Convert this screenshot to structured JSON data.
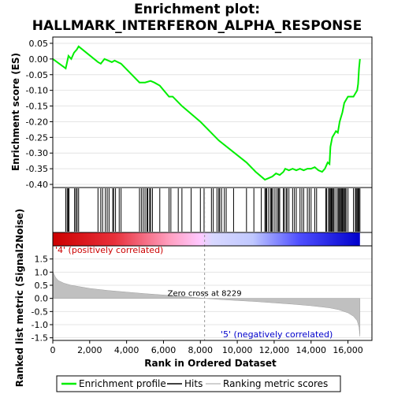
{
  "chart_data": {
    "type": "line",
    "title_line1": "Enrichment plot:",
    "title_line2": "HALLMARK_INTERFERON_ALPHA_RESPONSE",
    "es_panel": {
      "ylabel": "Enrichment score (ES)",
      "ylim": [
        -0.41,
        0.07
      ],
      "yticks": [
        "0.05",
        "0.00",
        "-0.05",
        "-0.10",
        "-0.15",
        "-0.20",
        "-0.25",
        "-0.30",
        "-0.35",
        "-0.40"
      ],
      "ytick_values": [
        0.05,
        0.0,
        -0.05,
        -0.1,
        -0.15,
        -0.2,
        -0.25,
        -0.3,
        -0.35,
        -0.4
      ],
      "series_name": "Enrichment profile",
      "color": "#00ee00",
      "x": [
        0,
        700,
        850,
        1000,
        1150,
        1300,
        1400,
        2450,
        2600,
        2800,
        3000,
        3200,
        3350,
        3700,
        4700,
        5000,
        5300,
        5500,
        5800,
        6300,
        6500,
        7000,
        8000,
        9000,
        10500,
        11000,
        11500,
        11700,
        11900,
        12100,
        12300,
        12500,
        12600,
        12800,
        13000,
        13200,
        13400,
        13600,
        13800,
        14000,
        14200,
        14400,
        14600,
        14750,
        14900,
        15000,
        15050,
        15150,
        15250,
        15350,
        15450,
        15550,
        15600,
        15700,
        15800,
        15900,
        16000,
        16150,
        16300,
        16400,
        16500,
        16550,
        16600,
        16650
      ],
      "y": [
        0.0,
        -0.03,
        0.01,
        0.0,
        0.02,
        0.03,
        0.04,
        -0.01,
        -0.015,
        0.0,
        -0.005,
        -0.01,
        -0.005,
        -0.015,
        -0.075,
        -0.075,
        -0.07,
        -0.075,
        -0.085,
        -0.12,
        -0.12,
        -0.15,
        -0.2,
        -0.26,
        -0.33,
        -0.36,
        -0.385,
        -0.38,
        -0.375,
        -0.365,
        -0.37,
        -0.36,
        -0.35,
        -0.355,
        -0.35,
        -0.355,
        -0.35,
        -0.355,
        -0.35,
        -0.35,
        -0.345,
        -0.355,
        -0.36,
        -0.35,
        -0.33,
        -0.335,
        -0.28,
        -0.25,
        -0.24,
        -0.23,
        -0.235,
        -0.2,
        -0.19,
        -0.17,
        -0.14,
        -0.13,
        -0.12,
        -0.12,
        -0.12,
        -0.11,
        -0.1,
        -0.08,
        -0.03,
        0.0
      ]
    },
    "hits": [
      700,
      780,
      830,
      880,
      1180,
      1250,
      1320,
      1400,
      2450,
      2600,
      2700,
      2850,
      2950,
      3050,
      3250,
      3300,
      3400,
      3600,
      3700,
      4700,
      4800,
      4900,
      5000,
      5100,
      5150,
      5250,
      5300,
      5400,
      5800,
      6300,
      6400,
      6800,
      7000,
      7500,
      8000,
      8200,
      8600,
      8700,
      8900,
      9000,
      9050,
      9150,
      9300,
      9400,
      9800,
      10500,
      10900,
      11300,
      11500,
      11550,
      11600,
      11700,
      11800,
      11850,
      11900,
      12000,
      12100,
      12200,
      12250,
      12300,
      12500,
      12550,
      12650,
      12700,
      12800,
      13000,
      13100,
      13200,
      13400,
      13500,
      13600,
      13800,
      13900,
      14000,
      14200,
      14300,
      14800,
      14850,
      14950,
      15000,
      15050,
      15100,
      15150,
      15200,
      15250,
      15350,
      15450,
      15500,
      15550,
      15600,
      15650,
      15700,
      15750,
      15800,
      15850,
      15900,
      16000,
      16300,
      16400,
      16450,
      16500,
      16550,
      16600,
      16650
    ],
    "metric_panel": {
      "ylabel": "Ranked list metric (Signal2Noise)",
      "xlabel": "Rank in Ordered Dataset",
      "ylim": [
        -1.6,
        2.0
      ],
      "yticks": [
        "1.5",
        "1.0",
        "0.5",
        "0.0",
        "-0.5",
        "-1.0",
        "-1.5"
      ],
      "ytick_values": [
        1.5,
        1.0,
        0.5,
        0.0,
        -0.5,
        -1.0,
        -1.5
      ],
      "profile_x": [
        0,
        50,
        150,
        300,
        600,
        1000,
        2000,
        3000,
        4000,
        5000,
        6000,
        7000,
        8229,
        9000,
        10000,
        11000,
        12000,
        13000,
        14000,
        15000,
        15500,
        16000,
        16300,
        16500,
        16600,
        16650
      ],
      "profile_y": [
        1.05,
        0.95,
        0.8,
        0.68,
        0.58,
        0.5,
        0.38,
        0.3,
        0.24,
        0.18,
        0.13,
        0.08,
        0.0,
        -0.04,
        -0.08,
        -0.12,
        -0.17,
        -0.22,
        -0.28,
        -0.36,
        -0.43,
        -0.55,
        -0.68,
        -0.85,
        -1.1,
        -1.45
      ],
      "color": "#c0c0c0"
    },
    "xlim": [
      0,
      17300
    ],
    "xticks": [
      "0",
      "2,000",
      "4,000",
      "6,000",
      "8,000",
      "10,000",
      "12,000",
      "14,000",
      "16,000"
    ],
    "xtick_values": [
      0,
      2000,
      4000,
      6000,
      8000,
      10000,
      12000,
      14000,
      16000
    ],
    "dataset_size": 16650,
    "zero_cross_label": "Zero cross at 8229",
    "zero_cross": 8229,
    "pos_label": "'4' (positively correlated)",
    "neg_label": "'5' (negatively correlated)",
    "pos_color": "#cc0000",
    "neg_color": "#0000cc",
    "legend": {
      "items": [
        "Enrichment profile",
        "Hits",
        "Ranking metric scores"
      ],
      "colors": [
        "#00ee00",
        "#000000",
        "#c0c0c0"
      ]
    }
  }
}
